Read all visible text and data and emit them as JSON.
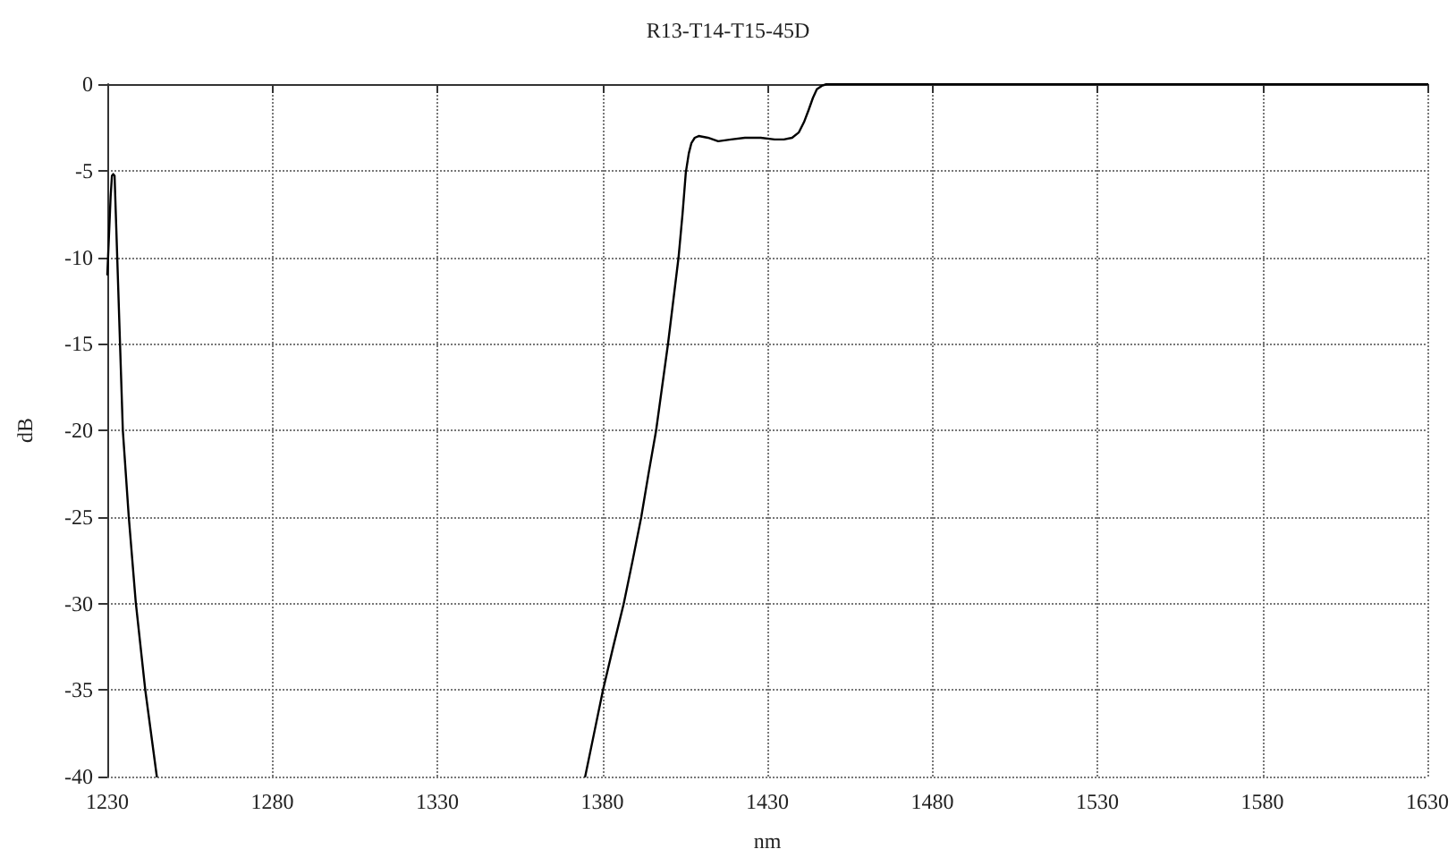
{
  "chart_data": {
    "type": "line",
    "title": "R13-T14-T15-45D",
    "xlabel": "nm",
    "ylabel": "dB",
    "x": [
      1230,
      1231,
      1231.4,
      1231.8,
      1232.2,
      1233,
      1234.7,
      1236.5,
      1238.6,
      1241.5,
      1245,
      1300,
      1374.8,
      1377.5,
      1380.2,
      1383.3,
      1386.5,
      1389.2,
      1391.8,
      1394,
      1396.3,
      1398.1,
      1399.9,
      1401.5,
      1403.1,
      1404.3,
      1405.3,
      1406.2,
      1407,
      1408,
      1409.2,
      1412,
      1415.1,
      1419,
      1423.2,
      1428,
      1432.2,
      1435,
      1437.5,
      1439.5,
      1441.1,
      1442.5,
      1443.8,
      1445,
      1446.5,
      1448,
      1460,
      1500,
      1550,
      1600,
      1630
    ],
    "series": [
      {
        "color": "#000000",
        "values": [
          -11,
          -6.5,
          -5.3,
          -5.2,
          -5.3,
          -10,
          -20,
          -25,
          -29.9,
          -35,
          -40,
          null,
          -40,
          -37.5,
          -35,
          -32.5,
          -30,
          -27.5,
          -25,
          -22.5,
          -20,
          -17.5,
          -15,
          -12.5,
          -10,
          -7.5,
          -5.1,
          -4,
          -3.4,
          -3.1,
          -3.0,
          -3.1,
          -3.3,
          -3.2,
          -3.1,
          -3.1,
          -3.2,
          -3.2,
          -3.1,
          -2.8,
          -2.2,
          -1.5,
          -0.8,
          -0.3,
          -0.1,
          0,
          0,
          0,
          0,
          0,
          0
        ]
      }
    ],
    "xlim": [
      1230,
      1630
    ],
    "xticks": [
      1230,
      1280,
      1330,
      1380,
      1430,
      1480,
      1530,
      1580,
      1630
    ],
    "ylim": [
      -40,
      0
    ],
    "yticks": [
      -40,
      -35,
      -30,
      -25,
      -20,
      -15,
      -10,
      -5,
      0
    ],
    "grid": true,
    "marker": "none",
    "line_style": "solid"
  }
}
